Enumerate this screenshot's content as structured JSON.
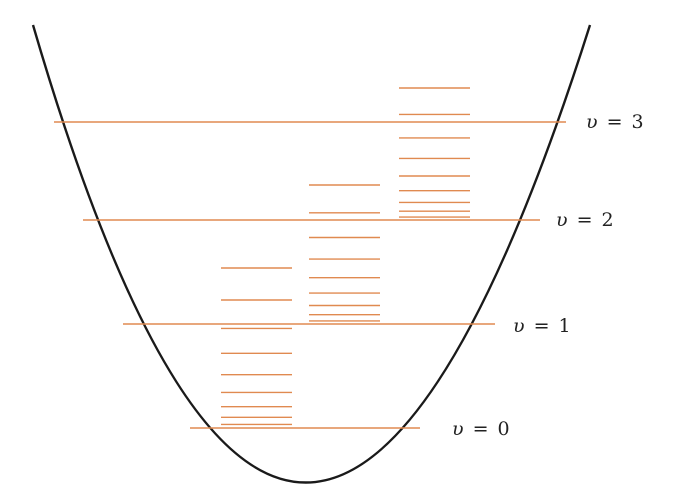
{
  "colors": {
    "curve": "#1a1a1a",
    "level": "#e08a50",
    "text": "#222222"
  },
  "levels": [
    {
      "label_var": "υ",
      "label_eq": "=",
      "label_num": "0"
    },
    {
      "label_var": "υ",
      "label_eq": "=",
      "label_num": "1"
    },
    {
      "label_var": "υ",
      "label_eq": "=",
      "label_num": "2"
    },
    {
      "label_var": "υ",
      "label_eq": "=",
      "label_num": "3"
    }
  ]
}
